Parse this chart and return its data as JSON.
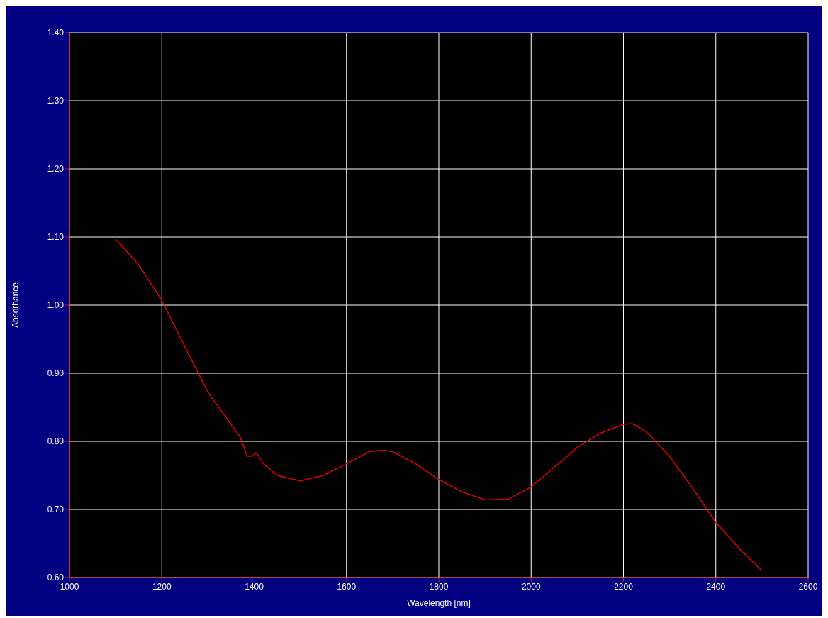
{
  "chart_data": {
    "type": "line",
    "xlabel": "Wavelength [nm]",
    "ylabel": "Absorbance",
    "x": [
      1100,
      1150,
      1200,
      1250,
      1300,
      1350,
      1370,
      1385,
      1395,
      1405,
      1420,
      1450,
      1500,
      1550,
      1600,
      1650,
      1680,
      1700,
      1750,
      1800,
      1850,
      1900,
      1950,
      2000,
      2050,
      2100,
      2150,
      2200,
      2220,
      2250,
      2300,
      2350,
      2400,
      2450,
      2500
    ],
    "series": [
      {
        "color": "#e00000",
        "values": [
          1.097,
          1.059,
          1.007,
          0.939,
          0.872,
          0.825,
          0.806,
          0.778,
          0.778,
          0.783,
          0.767,
          0.75,
          0.742,
          0.75,
          0.767,
          0.785,
          0.787,
          0.785,
          0.767,
          0.744,
          0.726,
          0.714,
          0.715,
          0.733,
          0.762,
          0.791,
          0.812,
          0.825,
          0.826,
          0.814,
          0.778,
          0.731,
          0.681,
          0.643,
          0.61
        ]
      }
    ],
    "xlim": [
      1000,
      2600
    ],
    "xticks": [
      1000,
      1200,
      1400,
      1600,
      1800,
      2000,
      2200,
      2400,
      2600
    ],
    "ylim": [
      0.6,
      1.4
    ],
    "yticks": [
      {
        "value": 0.6,
        "label": "0.60"
      },
      {
        "value": 0.7,
        "label": "0.70"
      },
      {
        "value": 0.8,
        "label": "0.80"
      },
      {
        "value": 0.9,
        "label": "0.90"
      },
      {
        "value": 1.0,
        "label": "1.00"
      },
      {
        "value": 1.1,
        "label": "1.10"
      },
      {
        "value": 1.2,
        "label": "1.20"
      },
      {
        "value": 1.3,
        "label": "1.30"
      },
      {
        "value": 1.4,
        "label": "1.40"
      }
    ],
    "grid": true
  }
}
